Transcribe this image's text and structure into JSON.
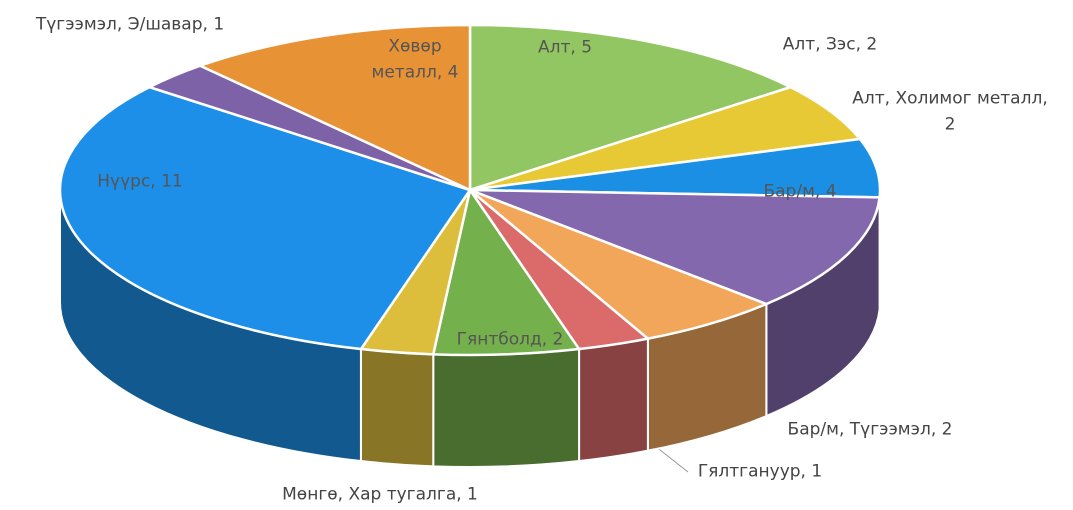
{
  "chart_data": {
    "type": "pie",
    "values": [
      5,
      2,
      2,
      4,
      2,
      1,
      2,
      1,
      11,
      1,
      4
    ],
    "value_labels": [
      "Алт, 5",
      "Алт, Зэс, 2",
      "Алт, Холимог металл, 2",
      "Бар/м, 4",
      "Бар/м, Түгээмэл, 2",
      "Гялтгануур, 1",
      "Гянтболд, 2",
      "Мөнгө, Хар тугалга, 1",
      "Нүүрс, 11",
      "Түгээмэл, Э/шавар, 1",
      "Хөвөр металл, 4"
    ],
    "colors": [
      "#92c662",
      "#e6c934",
      "#1a8fe3",
      "#8368ad",
      "#f2a65a",
      "#db6b6b",
      "#74b04c",
      "#dcbd3c",
      "#1d8fe8",
      "#7d62a8",
      "#e89236"
    ]
  }
}
